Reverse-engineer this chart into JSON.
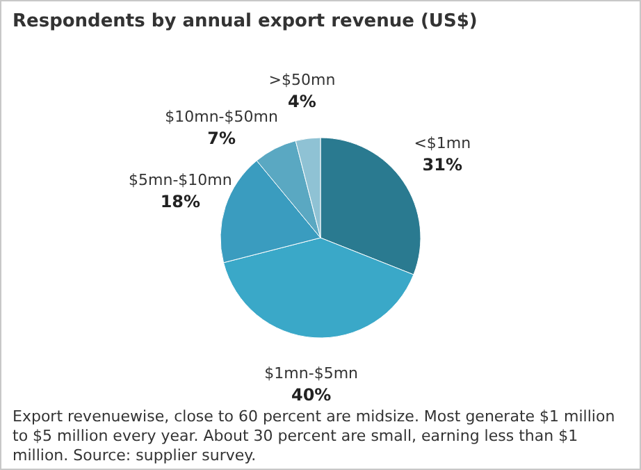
{
  "chart_data": {
    "type": "pie",
    "title": "Respondents by annual export revenue (US$)",
    "categories": [
      "<$1mn",
      "$1mn-$5mn",
      "$5mn-$10mn",
      "$10mn-$50mn",
      ">$50mn"
    ],
    "values": [
      31,
      40,
      18,
      7,
      4
    ],
    "value_labels": [
      "31%",
      "40%",
      "18%",
      "7%",
      "4%"
    ],
    "colors": [
      "#2a7a90",
      "#3aa8c8",
      "#3a9cbf",
      "#5aa8c2",
      "#8fc2d4"
    ],
    "annotations": [
      "Export revenuewise, close to 60 percent are midsize. Most generate $1 million to $5 million every year. About 30 percent are small, earning less than $1 million. Source: supplier survey."
    ]
  }
}
